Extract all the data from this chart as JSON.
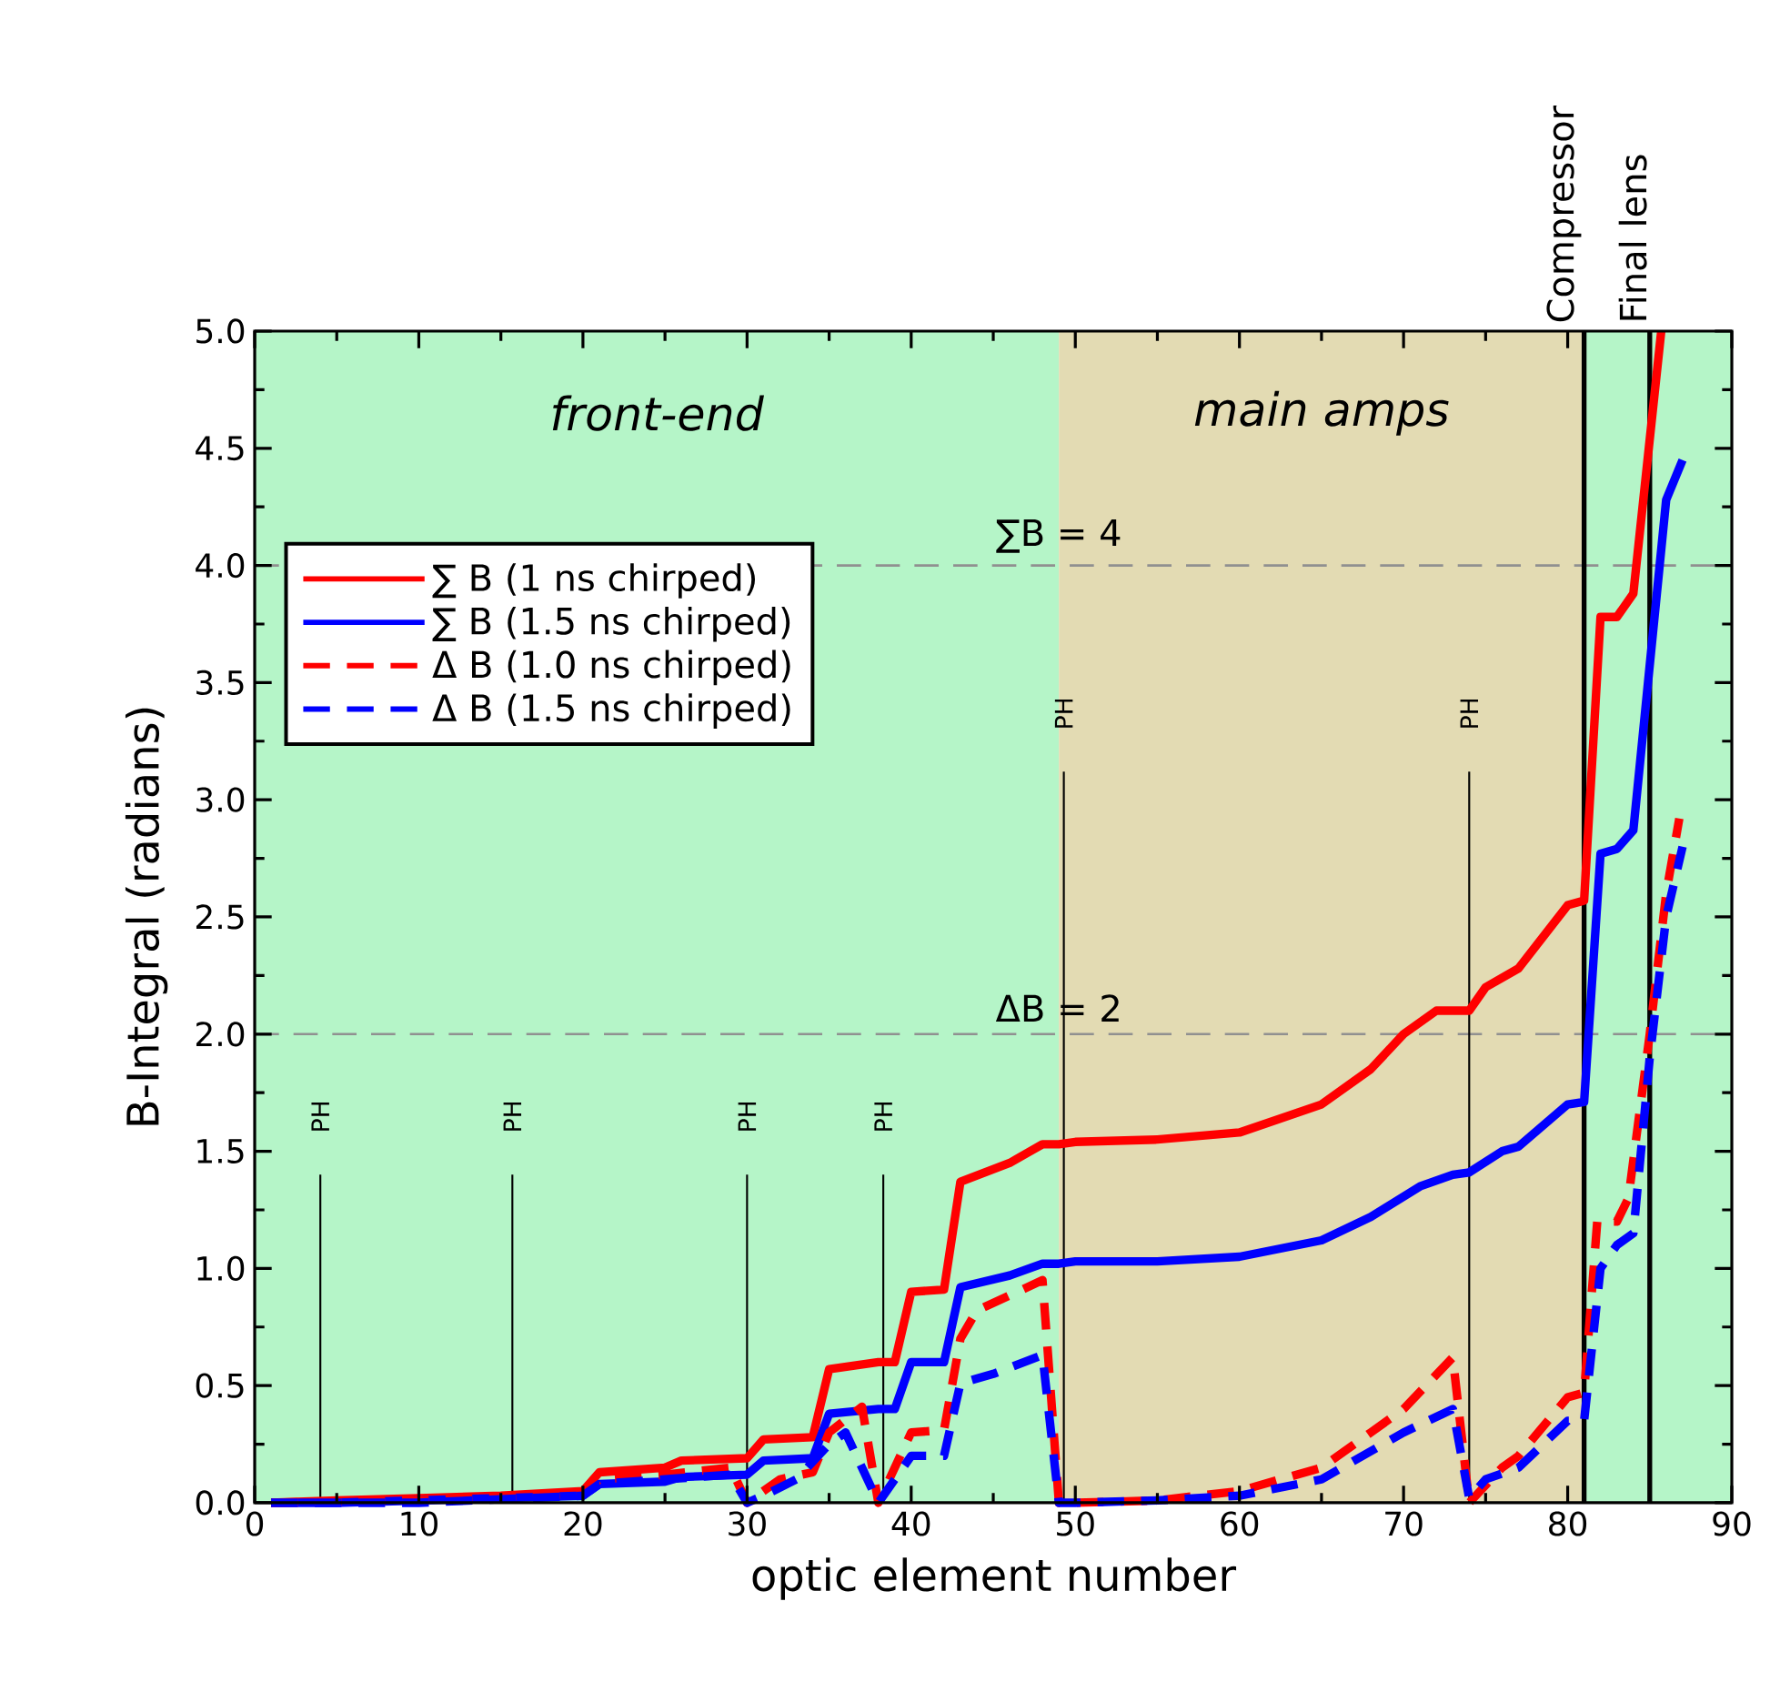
{
  "chart_data": {
    "type": "line",
    "xlabel": "optic element number",
    "ylabel": "B-Integral (radians)",
    "xlim": [
      0,
      90
    ],
    "ylim": [
      0,
      5
    ],
    "xticks": [
      0,
      10,
      20,
      30,
      40,
      50,
      60,
      70,
      80,
      90
    ],
    "yticks": [
      {
        "value": 0,
        "label": "0.0"
      },
      {
        "value": 0.5,
        "label": "0.5"
      },
      {
        "value": 1,
        "label": "1.0"
      },
      {
        "value": 1.5,
        "label": "1.5"
      },
      {
        "value": 2,
        "label": "2.0"
      },
      {
        "value": 2.5,
        "label": "2.5"
      },
      {
        "value": 3,
        "label": "3.0"
      },
      {
        "value": 3.5,
        "label": "3.5"
      },
      {
        "value": 4,
        "label": "4.0"
      },
      {
        "value": 4.5,
        "label": "4.5"
      },
      {
        "value": 5,
        "label": "5.0"
      }
    ],
    "grid": false,
    "legend": "top left",
    "series": [
      {
        "name": "∑ B (1 ns chirped)",
        "color": "#ff0000",
        "line_style": "solid",
        "x": [
          1,
          5,
          10,
          15,
          20,
          21,
          25,
          26,
          30,
          31,
          34,
          35,
          38,
          39,
          40,
          42,
          43,
          46,
          48,
          49,
          50,
          55,
          60,
          65,
          68,
          70,
          72,
          74,
          75,
          77,
          80,
          81,
          82,
          83,
          84,
          85.7
        ],
        "values": [
          0,
          0.01,
          0.02,
          0.03,
          0.05,
          0.13,
          0.15,
          0.18,
          0.19,
          0.27,
          0.28,
          0.57,
          0.6,
          0.6,
          0.9,
          0.91,
          1.37,
          1.45,
          1.53,
          1.53,
          1.54,
          1.55,
          1.58,
          1.7,
          1.85,
          2.0,
          2.1,
          2.1,
          2.2,
          2.28,
          2.55,
          2.57,
          3.78,
          3.78,
          3.88,
          5.0
        ]
      },
      {
        "name": "∑ B (1.5 ns chirped)",
        "color": "#0000ff",
        "line_style": "solid",
        "x": [
          1,
          5,
          10,
          15,
          20,
          21,
          25,
          26,
          30,
          31,
          34,
          35,
          38,
          39,
          40,
          42,
          43,
          46,
          48,
          49,
          50,
          55,
          60,
          65,
          68,
          71,
          73,
          74,
          76,
          77,
          80,
          81,
          82,
          83,
          84,
          86,
          87
        ],
        "values": [
          0,
          0,
          0.01,
          0.02,
          0.03,
          0.08,
          0.09,
          0.11,
          0.12,
          0.18,
          0.19,
          0.38,
          0.4,
          0.4,
          0.6,
          0.6,
          0.92,
          0.97,
          1.02,
          1.02,
          1.03,
          1.03,
          1.05,
          1.12,
          1.22,
          1.35,
          1.4,
          1.41,
          1.5,
          1.52,
          1.7,
          1.71,
          2.77,
          2.79,
          2.87,
          4.28,
          4.45
        ]
      },
      {
        "name": "Δ B (1.0 ns chirped)",
        "color": "#ff0000",
        "line_style": "dashed",
        "x": [
          1,
          10,
          20,
          21,
          25,
          29,
          30,
          32,
          34,
          35,
          37,
          38,
          40,
          42,
          43,
          44,
          48,
          49,
          50,
          55,
          60,
          65,
          68,
          70,
          73,
          74,
          76,
          77,
          80,
          81,
          81.8,
          83,
          83.7,
          85,
          86,
          86.8
        ],
        "values": [
          0,
          0.01,
          0.04,
          0.1,
          0.12,
          0.15,
          0.0,
          0.1,
          0.13,
          0.3,
          0.41,
          0.0,
          0.3,
          0.31,
          0.7,
          0.82,
          0.95,
          0.0,
          0.0,
          0.01,
          0.05,
          0.15,
          0.3,
          0.4,
          0.62,
          0.0,
          0.15,
          0.2,
          0.45,
          0.47,
          1.2,
          1.2,
          1.3,
          2.0,
          2.6,
          2.92
        ]
      },
      {
        "name": "Δ B (1.5 ns chirped)",
        "color": "#0000ff",
        "line_style": "dashed",
        "x": [
          1,
          10,
          20,
          21,
          25,
          29,
          30,
          31,
          33,
          35,
          36,
          38,
          40,
          42,
          43,
          45,
          48,
          49,
          50,
          55,
          60,
          65,
          70,
          73,
          74,
          75,
          77,
          80,
          81,
          82,
          83,
          84,
          85,
          86,
          87
        ],
        "values": [
          0,
          0,
          0.03,
          0.08,
          0.1,
          0.12,
          0.0,
          0.03,
          0.1,
          0.25,
          0.3,
          0.0,
          0.2,
          0.2,
          0.51,
          0.55,
          0.63,
          0.0,
          0.0,
          0.01,
          0.03,
          0.1,
          0.3,
          0.4,
          0.02,
          0.1,
          0.15,
          0.35,
          0.35,
          1.0,
          1.1,
          1.15,
          1.9,
          2.5,
          2.8
        ]
      }
    ],
    "bands": [
      {
        "axis": "x",
        "from": 0,
        "to": 49,
        "label": "front-end",
        "color": "#b5f5c8"
      },
      {
        "axis": "x",
        "from": 49,
        "to": 81,
        "label": "main amps",
        "color": "#e3dbb3"
      },
      {
        "axis": "x",
        "from": 81,
        "to": 90,
        "color": "#b5f5c8"
      }
    ],
    "ref_lines": [
      {
        "axis": "y",
        "value": 4,
        "label": "∑B = 4",
        "color": "#909090",
        "line_style": "dashed"
      },
      {
        "axis": "y",
        "value": 2,
        "label": "ΔB = 2",
        "color": "#909090",
        "line_style": "dashed"
      },
      {
        "axis": "x",
        "value": 81,
        "label": "Compressor",
        "color": "#000000",
        "line_style": "solid"
      },
      {
        "axis": "x",
        "value": 85,
        "label": "Final lens",
        "color": "#000000",
        "line_style": "solid"
      },
      {
        "axis": "x",
        "value": 4,
        "label": "PH",
        "color": "#000000",
        "line_style": "solid"
      },
      {
        "axis": "x",
        "value": 15.7,
        "label": "PH",
        "color": "#000000",
        "line_style": "solid"
      },
      {
        "axis": "x",
        "value": 30,
        "label": "PH",
        "color": "#000000",
        "line_style": "solid"
      },
      {
        "axis": "x",
        "value": 38.3,
        "label": "PH",
        "color": "#000000",
        "line_style": "solid"
      },
      {
        "axis": "x",
        "value": 49.3,
        "label": "PH",
        "color": "#000000",
        "line_style": "solid"
      },
      {
        "axis": "x",
        "value": 74,
        "label": "PH",
        "color": "#000000",
        "line_style": "solid"
      }
    ]
  }
}
